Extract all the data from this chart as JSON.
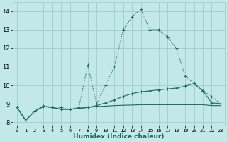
{
  "title": "",
  "xlabel": "Humidex (Indice chaleur)",
  "ylabel": "",
  "bg_color": "#c2e8e8",
  "grid_color": "#a0cccc",
  "line_color": "#1a6b5a",
  "xlim": [
    -0.5,
    23.5
  ],
  "ylim": [
    7.8,
    14.5
  ],
  "xticks": [
    0,
    1,
    2,
    3,
    4,
    5,
    6,
    7,
    8,
    9,
    10,
    11,
    12,
    13,
    14,
    15,
    16,
    17,
    18,
    19,
    20,
    21,
    22,
    23
  ],
  "yticks": [
    8,
    9,
    10,
    11,
    12,
    13,
    14
  ],
  "line1_x": [
    0,
    1,
    2,
    3,
    4,
    5,
    6,
    7,
    8,
    9,
    10,
    11,
    12,
    13,
    14,
    15,
    16,
    17,
    18,
    19,
    20,
    21,
    22,
    23
  ],
  "line1_y": [
    8.8,
    8.1,
    8.6,
    8.9,
    8.8,
    8.8,
    8.7,
    8.8,
    11.1,
    9.0,
    10.0,
    11.0,
    13.0,
    13.7,
    14.1,
    13.0,
    13.0,
    12.6,
    12.0,
    10.5,
    10.1,
    9.7,
    9.4,
    9.0
  ],
  "line2_x": [
    0,
    1,
    2,
    3,
    4,
    5,
    6,
    7,
    8,
    9,
    10,
    11,
    12,
    13,
    14,
    15,
    16,
    17,
    18,
    19,
    20,
    21,
    22,
    23
  ],
  "line2_y": [
    8.8,
    8.1,
    8.6,
    8.85,
    8.8,
    8.7,
    8.7,
    8.75,
    8.8,
    8.9,
    9.05,
    9.2,
    9.4,
    9.55,
    9.65,
    9.7,
    9.75,
    9.8,
    9.85,
    9.95,
    10.1,
    9.7,
    9.05,
    9.0
  ],
  "line3_x": [
    0,
    1,
    2,
    3,
    4,
    5,
    6,
    7,
    8,
    9,
    10,
    11,
    12,
    13,
    14,
    15,
    16,
    17,
    18,
    19,
    20,
    21,
    22,
    23
  ],
  "line3_y": [
    8.8,
    8.1,
    8.6,
    8.85,
    8.8,
    8.7,
    8.7,
    8.75,
    8.8,
    8.85,
    8.87,
    8.9,
    8.92,
    8.93,
    8.95,
    8.95,
    8.95,
    8.95,
    8.95,
    8.95,
    8.95,
    8.95,
    8.9,
    8.9
  ]
}
